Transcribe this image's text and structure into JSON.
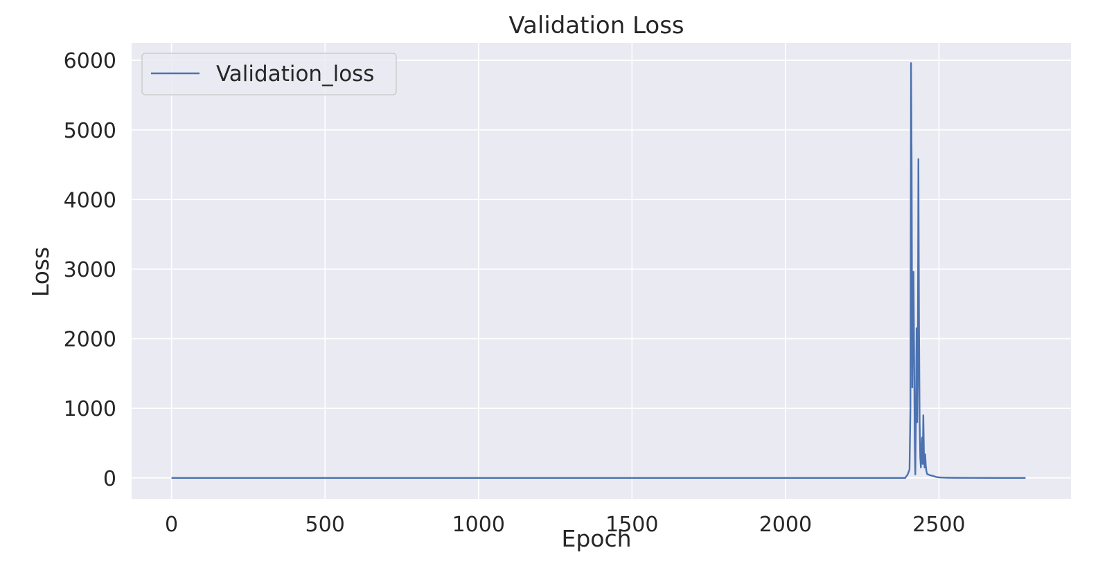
{
  "chart_data": {
    "type": "line",
    "title": "Validation Loss",
    "xlabel": "Epoch",
    "ylabel": "Loss",
    "xlim": [
      -130,
      2930
    ],
    "ylim": [
      -300,
      6250
    ],
    "xticks": [
      0,
      500,
      1000,
      1500,
      2000,
      2500
    ],
    "yticks": [
      0,
      1000,
      2000,
      3000,
      4000,
      5000,
      6000
    ],
    "grid": true,
    "legend_position": "top-left",
    "colors": {
      "background": "#eaeaf2",
      "grid": "#ffffff",
      "series": "#4c72b0",
      "text": "#262626",
      "legend_border": "#cccccc"
    },
    "series": [
      {
        "name": "Validation_loss",
        "x": [
          0,
          2390,
          2398,
          2404,
          2407,
          2409,
          2411,
          2413,
          2415,
          2417,
          2419,
          2421,
          2423,
          2425,
          2427,
          2429,
          2431,
          2433,
          2435,
          2437,
          2439,
          2441,
          2443,
          2445,
          2447,
          2449,
          2451,
          2453,
          2455,
          2457,
          2459,
          2461,
          2463,
          2466,
          2470,
          2480,
          2490,
          2500,
          2515,
          2530,
          2560,
          2600,
          2700,
          2782
        ],
        "y": [
          0,
          0,
          50,
          120,
          1000,
          5960,
          4500,
          1300,
          2300,
          2960,
          1800,
          500,
          50,
          900,
          2150,
          800,
          1500,
          4580,
          2200,
          800,
          300,
          150,
          450,
          580,
          200,
          900,
          350,
          150,
          340,
          180,
          100,
          60,
          50,
          50,
          40,
          30,
          15,
          8,
          5,
          3,
          2,
          1,
          0,
          0
        ]
      }
    ]
  }
}
